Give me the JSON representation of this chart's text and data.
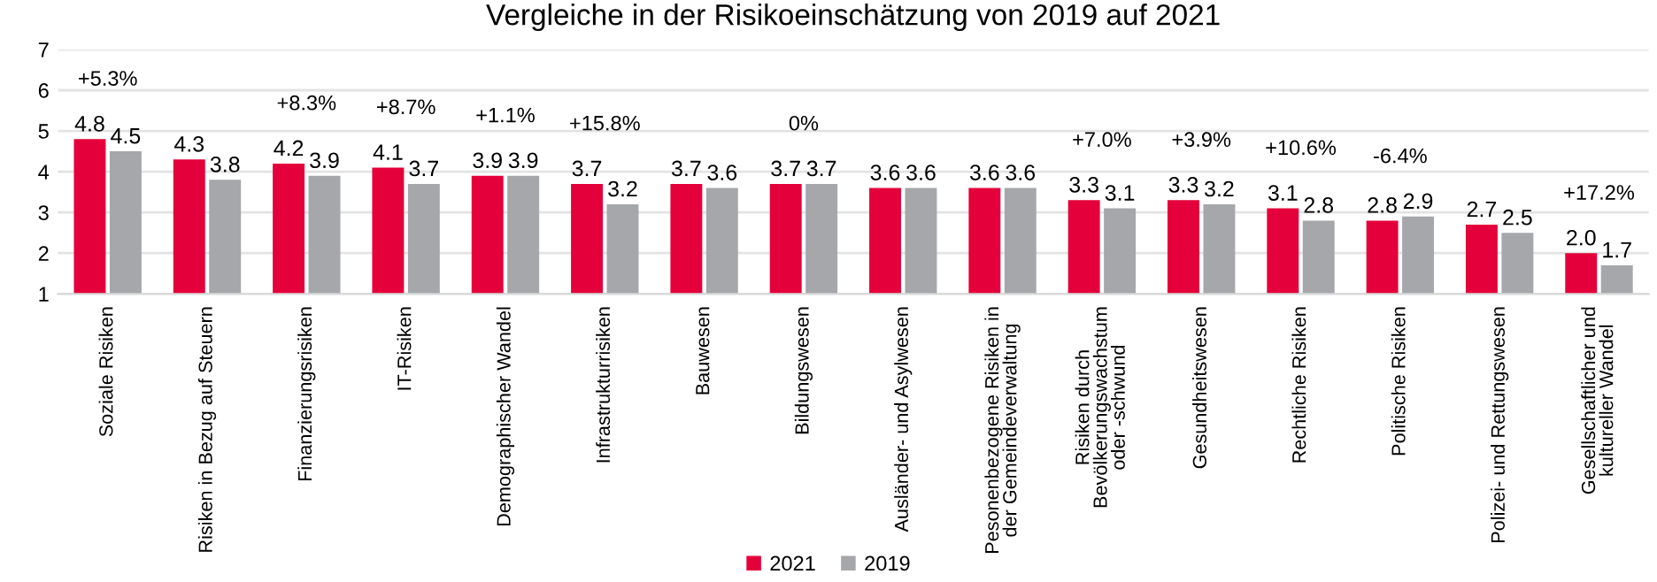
{
  "chart_data": {
    "type": "bar",
    "title": "Vergleiche in der Risikoeinschätzung von 2019 auf 2021",
    "categories": [
      "Soziale Risiken",
      "Risiken in Bezug auf Steuern",
      "Finanzierungsrisiken",
      "IT-Risiken",
      "Demographischer Wandel",
      "Infrastrukturrisiken",
      "Bauwesen",
      "Bildungswesen",
      "Ausländer- und Asylwesen",
      "Pesonenbezogene Risiken in\nder Gemeindeverwaltung",
      "Risiken durch\nBevölkerungswachstum\noder -schwund",
      "Gesundheitswesen",
      "Rechtliche Risiken",
      "Politische Risiken",
      "Polizei- und Rettungswesen",
      "Gesellschaftlicher und\nkultureller Wandel"
    ],
    "series": [
      {
        "name": "2021",
        "color": "#e4003a",
        "values": [
          4.8,
          4.3,
          4.2,
          4.1,
          3.9,
          3.7,
          3.7,
          3.7,
          3.6,
          3.6,
          3.3,
          3.3,
          3.1,
          2.8,
          2.7,
          2.0
        ],
        "value_labels": [
          "4.8",
          "4.3",
          "4.2",
          "4.1",
          "3.9",
          "3.7",
          "3.7",
          "3.7",
          "3.6",
          "3.6",
          "3.3",
          "3.3",
          "3.1",
          "2.8",
          "2.7",
          "2.0"
        ]
      },
      {
        "name": "2019",
        "color": "#a5a7aa",
        "values": [
          4.5,
          3.8,
          3.9,
          3.7,
          3.9,
          3.2,
          3.6,
          3.7,
          3.6,
          3.6,
          3.1,
          3.2,
          2.8,
          2.9,
          2.5,
          1.7
        ],
        "value_labels": [
          "4.5",
          "3.8",
          "3.9",
          "3.7",
          "3.9",
          "3.2",
          "3.6",
          "3.7",
          "3.6",
          "3.6",
          "3.1",
          "3.2",
          "2.8",
          "2.9",
          "2.5",
          "1.7"
        ]
      }
    ],
    "ylim": [
      1,
      7
    ],
    "yticks": [
      1,
      2,
      3,
      4,
      5,
      6,
      7
    ],
    "grid": "y",
    "legend": "bottom",
    "annotations": [
      "+5.3%",
      null,
      "+8.3%",
      "+8.7%",
      "+1.1%",
      "+15.8%",
      null,
      "0%",
      null,
      null,
      "+7.0%",
      "+3.9%",
      "+10.6%",
      "-6.4%",
      null,
      "+17.2%"
    ]
  }
}
